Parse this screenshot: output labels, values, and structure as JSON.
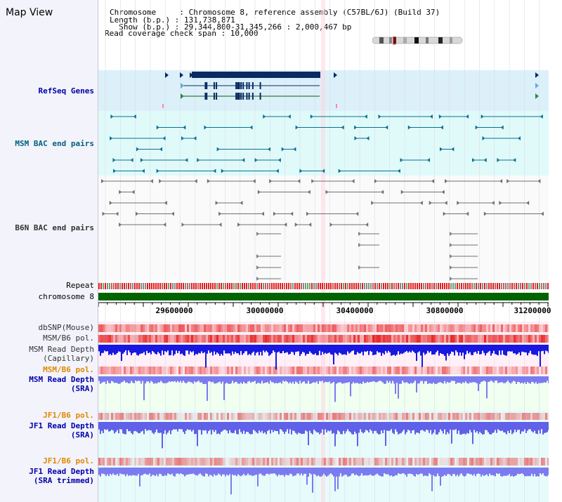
{
  "page": {
    "title": "Map View"
  },
  "header": {
    "chromosome_line": "Chromosome     : Chromosome 8, reference assembly (C57BL/6J) (Build 37)",
    "length_line": "Length (b.p.) : 131,738,871",
    "show_line": "  Show (b.p.) : 29,344,800-31,345,266 : 2,000,467 bp",
    "coverage_line": "Read coverage check span : 10,000"
  },
  "tracks": {
    "refseq_genes": "RefSeq Genes",
    "msm_bac": "MSM BAC end pairs",
    "b6n_bac": "B6N BAC end pairs",
    "repeat": "Repeat",
    "chromosome": "chromosome 8",
    "dbsnp": "dbSNP(Mouse)",
    "msm_b6_pol": "MSM/B6 pol.",
    "msm_read_depth_cap_1": "MSM Read Depth",
    "msm_read_depth_cap_2": "(Capillary)",
    "msm_b6_pol_2": "MSM/B6 pol.",
    "msm_read_depth_sra_1": "MSM Read Depth",
    "msm_read_depth_sra_2": "(SRA)",
    "jf1_b6_pol": "JF1/B6 pol.",
    "jf1_read_depth_sra_1": "JF1 Read Depth",
    "jf1_read_depth_sra_2": "(SRA)",
    "jf1_b6_pol_2": "JF1/B6 pol.",
    "jf1_read_depth_trim_1": "JF1 Read Depth",
    "jf1_read_depth_trim_2": "(SRA trimmed)"
  },
  "axis": {
    "ticks": [
      "29600000",
      "30000000",
      "30400000",
      "30800000",
      "31200000"
    ]
  },
  "colors": {
    "label_blue": "#0000aa",
    "label_teal": "#006080",
    "label_orange": "#e08800",
    "label_gray": "#333333",
    "gene_fill": "#0a2a60",
    "chromosome_bar": "#006400"
  }
}
